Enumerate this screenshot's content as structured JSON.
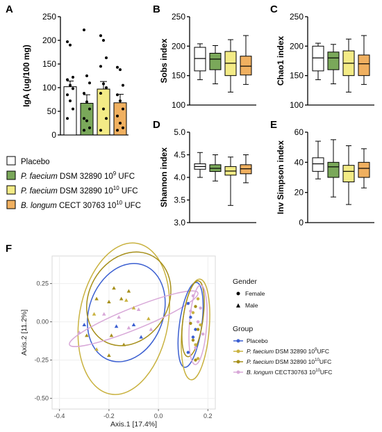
{
  "colors": {
    "placebo": "#ffffff",
    "g2": "#7aa85a",
    "g3": "#f3eb86",
    "g4": "#f0b060",
    "line": "#000000",
    "pc_placebo": "#3b5fd1",
    "pc_g2": "#c9b240",
    "pc_g3": "#a68f1a",
    "pc_g4": "#d8a8d8",
    "border": "#d8d8d8"
  },
  "legend": {
    "items": [
      {
        "key": "placebo",
        "label": "Placebo"
      },
      {
        "key": "g2",
        "strain": "P. faecium",
        "rest": " DSM 32890 10",
        "sup": "9",
        "tail": " UFC"
      },
      {
        "key": "g3",
        "strain": "P. faecium",
        "rest": " DSM 32890 10",
        "sup": "10",
        "tail": " UFC"
      },
      {
        "key": "g4",
        "strain": "B. longum",
        "rest": " CECT 30763 10",
        "sup": "10",
        "tail": " UFC"
      }
    ]
  },
  "chart_data": [
    {
      "panel": "A",
      "type": "bar",
      "ylabel": "IgA (ug/100 mg)",
      "ylim": [
        0,
        250
      ],
      "yticks": [
        0,
        50,
        100,
        150,
        200,
        250
      ],
      "categories": [
        "Placebo",
        "P. faecium DSM 32890 10^9 UFC",
        "P. faecium DSM 32890 10^10 UFC",
        "B. longum CECT 30763 10^10 UFC"
      ],
      "values": [
        102,
        67,
        97,
        68
      ],
      "error": [
        12,
        18,
        16,
        18
      ],
      "points": [
        [
          197,
          190,
          122,
          117,
          105,
          98,
          85,
          72,
          55,
          35
        ],
        [
          222,
          125,
          110,
          88,
          70,
          55,
          35,
          30,
          15,
          10
        ],
        [
          210,
          200,
          163,
          145,
          108,
          100,
          88,
          55,
          35,
          10
        ],
        [
          143,
          138,
          105,
          85,
          72,
          55,
          40,
          25,
          15,
          10
        ]
      ]
    },
    {
      "panel": "B",
      "type": "box",
      "ylabel": "Sobs index",
      "ylim": [
        100,
        250
      ],
      "yticks": [
        100,
        150,
        200,
        250
      ],
      "boxes": [
        {
          "min": 143,
          "q1": 158,
          "median": 179,
          "q3": 198,
          "max": 204
        },
        {
          "min": 136,
          "q1": 160,
          "median": 178,
          "q3": 188,
          "max": 201
        },
        {
          "min": 122,
          "q1": 150,
          "median": 171,
          "q3": 191,
          "max": 211
        },
        {
          "min": 135,
          "q1": 151,
          "median": 166,
          "q3": 183,
          "max": 218
        }
      ]
    },
    {
      "panel": "C",
      "type": "box",
      "ylabel": "Chao1 index",
      "ylim": [
        100,
        250
      ],
      "yticks": [
        100,
        150,
        200,
        250
      ],
      "boxes": [
        {
          "min": 143,
          "q1": 158,
          "median": 180,
          "q3": 200,
          "max": 205
        },
        {
          "min": 136,
          "q1": 160,
          "median": 180,
          "q3": 190,
          "max": 203
        },
        {
          "min": 122,
          "q1": 150,
          "median": 171,
          "q3": 192,
          "max": 212
        },
        {
          "min": 135,
          "q1": 150,
          "median": 170,
          "q3": 185,
          "max": 218
        }
      ]
    },
    {
      "panel": "D",
      "type": "box",
      "ylabel": "Shannon index",
      "ylim": [
        3.0,
        5.0
      ],
      "yticks": [
        "3.0",
        "3.5",
        "4.0",
        "4.5",
        "5.0"
      ],
      "boxes": [
        {
          "min": 4.0,
          "q1": 4.18,
          "median": 4.24,
          "q3": 4.3,
          "max": 4.55
        },
        {
          "min": 3.92,
          "q1": 4.13,
          "median": 4.2,
          "q3": 4.28,
          "max": 4.5
        },
        {
          "min": 3.38,
          "q1": 4.05,
          "median": 4.14,
          "q3": 4.24,
          "max": 4.45
        },
        {
          "min": 3.88,
          "q1": 4.08,
          "median": 4.19,
          "q3": 4.28,
          "max": 4.5
        }
      ]
    },
    {
      "panel": "E",
      "type": "box",
      "ylabel": "Inv Simpson index",
      "ylim": [
        0,
        60
      ],
      "yticks": [
        0,
        20,
        40,
        60
      ],
      "boxes": [
        {
          "min": 29,
          "q1": 34,
          "median": 39,
          "q3": 43,
          "max": 54
        },
        {
          "min": 17,
          "q1": 30,
          "median": 37,
          "q3": 40,
          "max": 55
        },
        {
          "min": 12,
          "q1": 27,
          "median": 34,
          "q3": 38,
          "max": 51
        },
        {
          "min": 23,
          "q1": 30,
          "median": 36,
          "q3": 40,
          "max": 49
        }
      ]
    },
    {
      "panel": "F",
      "type": "scatter",
      "xlabel": "Axis.1   [17.4%]",
      "ylabel": "Axis.2   [11.2%]",
      "xlim": [
        -0.43,
        0.23
      ],
      "ylim": [
        -0.57,
        0.43
      ],
      "xticks": [
        "-0.4",
        "-0.2",
        "0.0",
        "0.2"
      ],
      "yticks": [
        "0.25",
        "0.00",
        "-0.25",
        "-0.50"
      ],
      "legend_gender_title": "Gender",
      "legend_gender": [
        {
          "shape": "circle",
          "label": "Female"
        },
        {
          "shape": "triangle",
          "label": "Male"
        }
      ],
      "legend_group_title": "Group",
      "legend_group": [
        {
          "key": "pc_placebo",
          "label": "Placebo"
        },
        {
          "key": "pc_g2",
          "strain": "P. faecium",
          "rest": " DSM 32890 10",
          "sup": "9",
          "tail": "UFC"
        },
        {
          "key": "pc_g3",
          "strain": "P. faecium",
          "rest": " DSM 32890 10",
          "sup": "10",
          "tail": "UFC"
        },
        {
          "key": "pc_g4",
          "strain": "B. longum",
          "rest": " CECT30763 10",
          "sup": "10",
          "tail": "UFC"
        }
      ],
      "ellipses": [
        {
          "group": "pc_placebo",
          "cx": -0.13,
          "cy": 0.06,
          "rx": 0.15,
          "ry": 0.33,
          "rot": 20
        },
        {
          "group": "pc_g2",
          "cx": -0.14,
          "cy": 0.02,
          "rx": 0.18,
          "ry": 0.5,
          "rot": 10
        },
        {
          "group": "pc_g3",
          "cx": -0.12,
          "cy": 0.15,
          "rx": 0.16,
          "ry": 0.32,
          "rot": 30
        },
        {
          "group": "pc_g4",
          "cx": -0.1,
          "cy": 0.02,
          "rx": 0.28,
          "ry": 0.07,
          "rot": -22
        },
        {
          "group": "pc_placebo",
          "cx": 0.13,
          "cy": -0.02,
          "rx": 0.045,
          "ry": 0.28,
          "rot": 8
        },
        {
          "group": "pc_g2",
          "cx": 0.15,
          "cy": -0.05,
          "rx": 0.055,
          "ry": 0.33,
          "rot": 5
        },
        {
          "group": "pc_g3",
          "cx": 0.14,
          "cy": 0.02,
          "rx": 0.04,
          "ry": 0.25,
          "rot": 8
        },
        {
          "group": "pc_g4",
          "cx": 0.16,
          "cy": -0.02,
          "rx": 0.035,
          "ry": 0.26,
          "rot": 4
        }
      ],
      "points": [
        {
          "g": "pc_g3",
          "s": "t",
          "x": -0.25,
          "y": 0.15
        },
        {
          "g": "pc_g3",
          "s": "t",
          "x": -0.2,
          "y": 0.13
        },
        {
          "g": "pc_g3",
          "s": "t",
          "x": -0.15,
          "y": 0.15
        },
        {
          "g": "pc_g3",
          "s": "t",
          "x": -0.12,
          "y": 0.2
        },
        {
          "g": "pc_g3",
          "s": "t",
          "x": -0.18,
          "y": 0.22
        },
        {
          "g": "pc_g2",
          "s": "t",
          "x": -0.13,
          "y": 0.14
        },
        {
          "g": "pc_g2",
          "s": "t",
          "x": -0.1,
          "y": 0.09
        },
        {
          "g": "pc_g2",
          "s": "t",
          "x": -0.26,
          "y": 0.05
        },
        {
          "g": "pc_g2",
          "s": "t",
          "x": -0.04,
          "y": 0.02
        },
        {
          "g": "pc_g4",
          "s": "t",
          "x": -0.22,
          "y": 0.05
        },
        {
          "g": "pc_g4",
          "s": "t",
          "x": -0.16,
          "y": 0.03
        },
        {
          "g": "pc_g4",
          "s": "t",
          "x": -0.08,
          "y": 0.08
        },
        {
          "g": "pc_g4",
          "s": "t",
          "x": -0.12,
          "y": -0.04
        },
        {
          "g": "pc_g4",
          "s": "t",
          "x": -0.03,
          "y": -0.05
        },
        {
          "g": "pc_placebo",
          "s": "t",
          "x": -0.3,
          "y": -0.02
        },
        {
          "g": "pc_placebo",
          "s": "t",
          "x": -0.17,
          "y": -0.03
        },
        {
          "g": "pc_placebo",
          "s": "t",
          "x": -0.1,
          "y": -0.02
        },
        {
          "g": "pc_placebo",
          "s": "t",
          "x": -0.07,
          "y": -0.1
        },
        {
          "g": "pc_g3",
          "s": "t",
          "x": -0.29,
          "y": -0.09
        },
        {
          "g": "pc_g3",
          "s": "t",
          "x": -0.19,
          "y": -0.09
        },
        {
          "g": "pc_g3",
          "s": "t",
          "x": -0.14,
          "y": -0.15
        },
        {
          "g": "pc_g3",
          "s": "t",
          "x": -0.2,
          "y": -0.22
        },
        {
          "g": "pc_g2",
          "s": "t",
          "x": -0.25,
          "y": -0.18
        },
        {
          "g": "pc_g4",
          "s": "t",
          "x": -0.32,
          "y": -0.07
        },
        {
          "g": "pc_placebo",
          "s": "c",
          "x": 0.12,
          "y": 0.12
        },
        {
          "g": "pc_placebo",
          "s": "c",
          "x": 0.13,
          "y": 0.03
        },
        {
          "g": "pc_placebo",
          "s": "c",
          "x": 0.15,
          "y": -0.05
        },
        {
          "g": "pc_placebo",
          "s": "c",
          "x": 0.14,
          "y": -0.1
        },
        {
          "g": "pc_placebo",
          "s": "c",
          "x": 0.12,
          "y": -0.2
        },
        {
          "g": "pc_g2",
          "s": "c",
          "x": 0.16,
          "y": 0.15
        },
        {
          "g": "pc_g2",
          "s": "c",
          "x": 0.14,
          "y": 0.06
        },
        {
          "g": "pc_g2",
          "s": "c",
          "x": 0.17,
          "y": -0.02
        },
        {
          "g": "pc_g2",
          "s": "c",
          "x": 0.15,
          "y": -0.15
        },
        {
          "g": "pc_g2",
          "s": "c",
          "x": 0.16,
          "y": -0.24
        },
        {
          "g": "pc_g3",
          "s": "c",
          "x": 0.15,
          "y": 0.1
        },
        {
          "g": "pc_g3",
          "s": "c",
          "x": 0.13,
          "y": -0.01
        },
        {
          "g": "pc_g3",
          "s": "c",
          "x": 0.14,
          "y": -0.12
        },
        {
          "g": "pc_g3",
          "s": "c",
          "x": 0.15,
          "y": -0.25
        },
        {
          "g": "pc_g3",
          "s": "c",
          "x": 0.16,
          "y": -0.05
        },
        {
          "g": "pc_g4",
          "s": "c",
          "x": 0.17,
          "y": 0.09
        },
        {
          "g": "pc_g4",
          "s": "c",
          "x": 0.16,
          "y": 0.0
        },
        {
          "g": "pc_g4",
          "s": "c",
          "x": 0.18,
          "y": -0.08
        },
        {
          "g": "pc_g4",
          "s": "c",
          "x": 0.14,
          "y": 0.17
        },
        {
          "g": "pc_g4",
          "s": "c",
          "x": 0.15,
          "y": -0.17
        },
        {
          "g": "pc_g4",
          "s": "c",
          "x": 0.13,
          "y": 0.07
        }
      ]
    }
  ]
}
